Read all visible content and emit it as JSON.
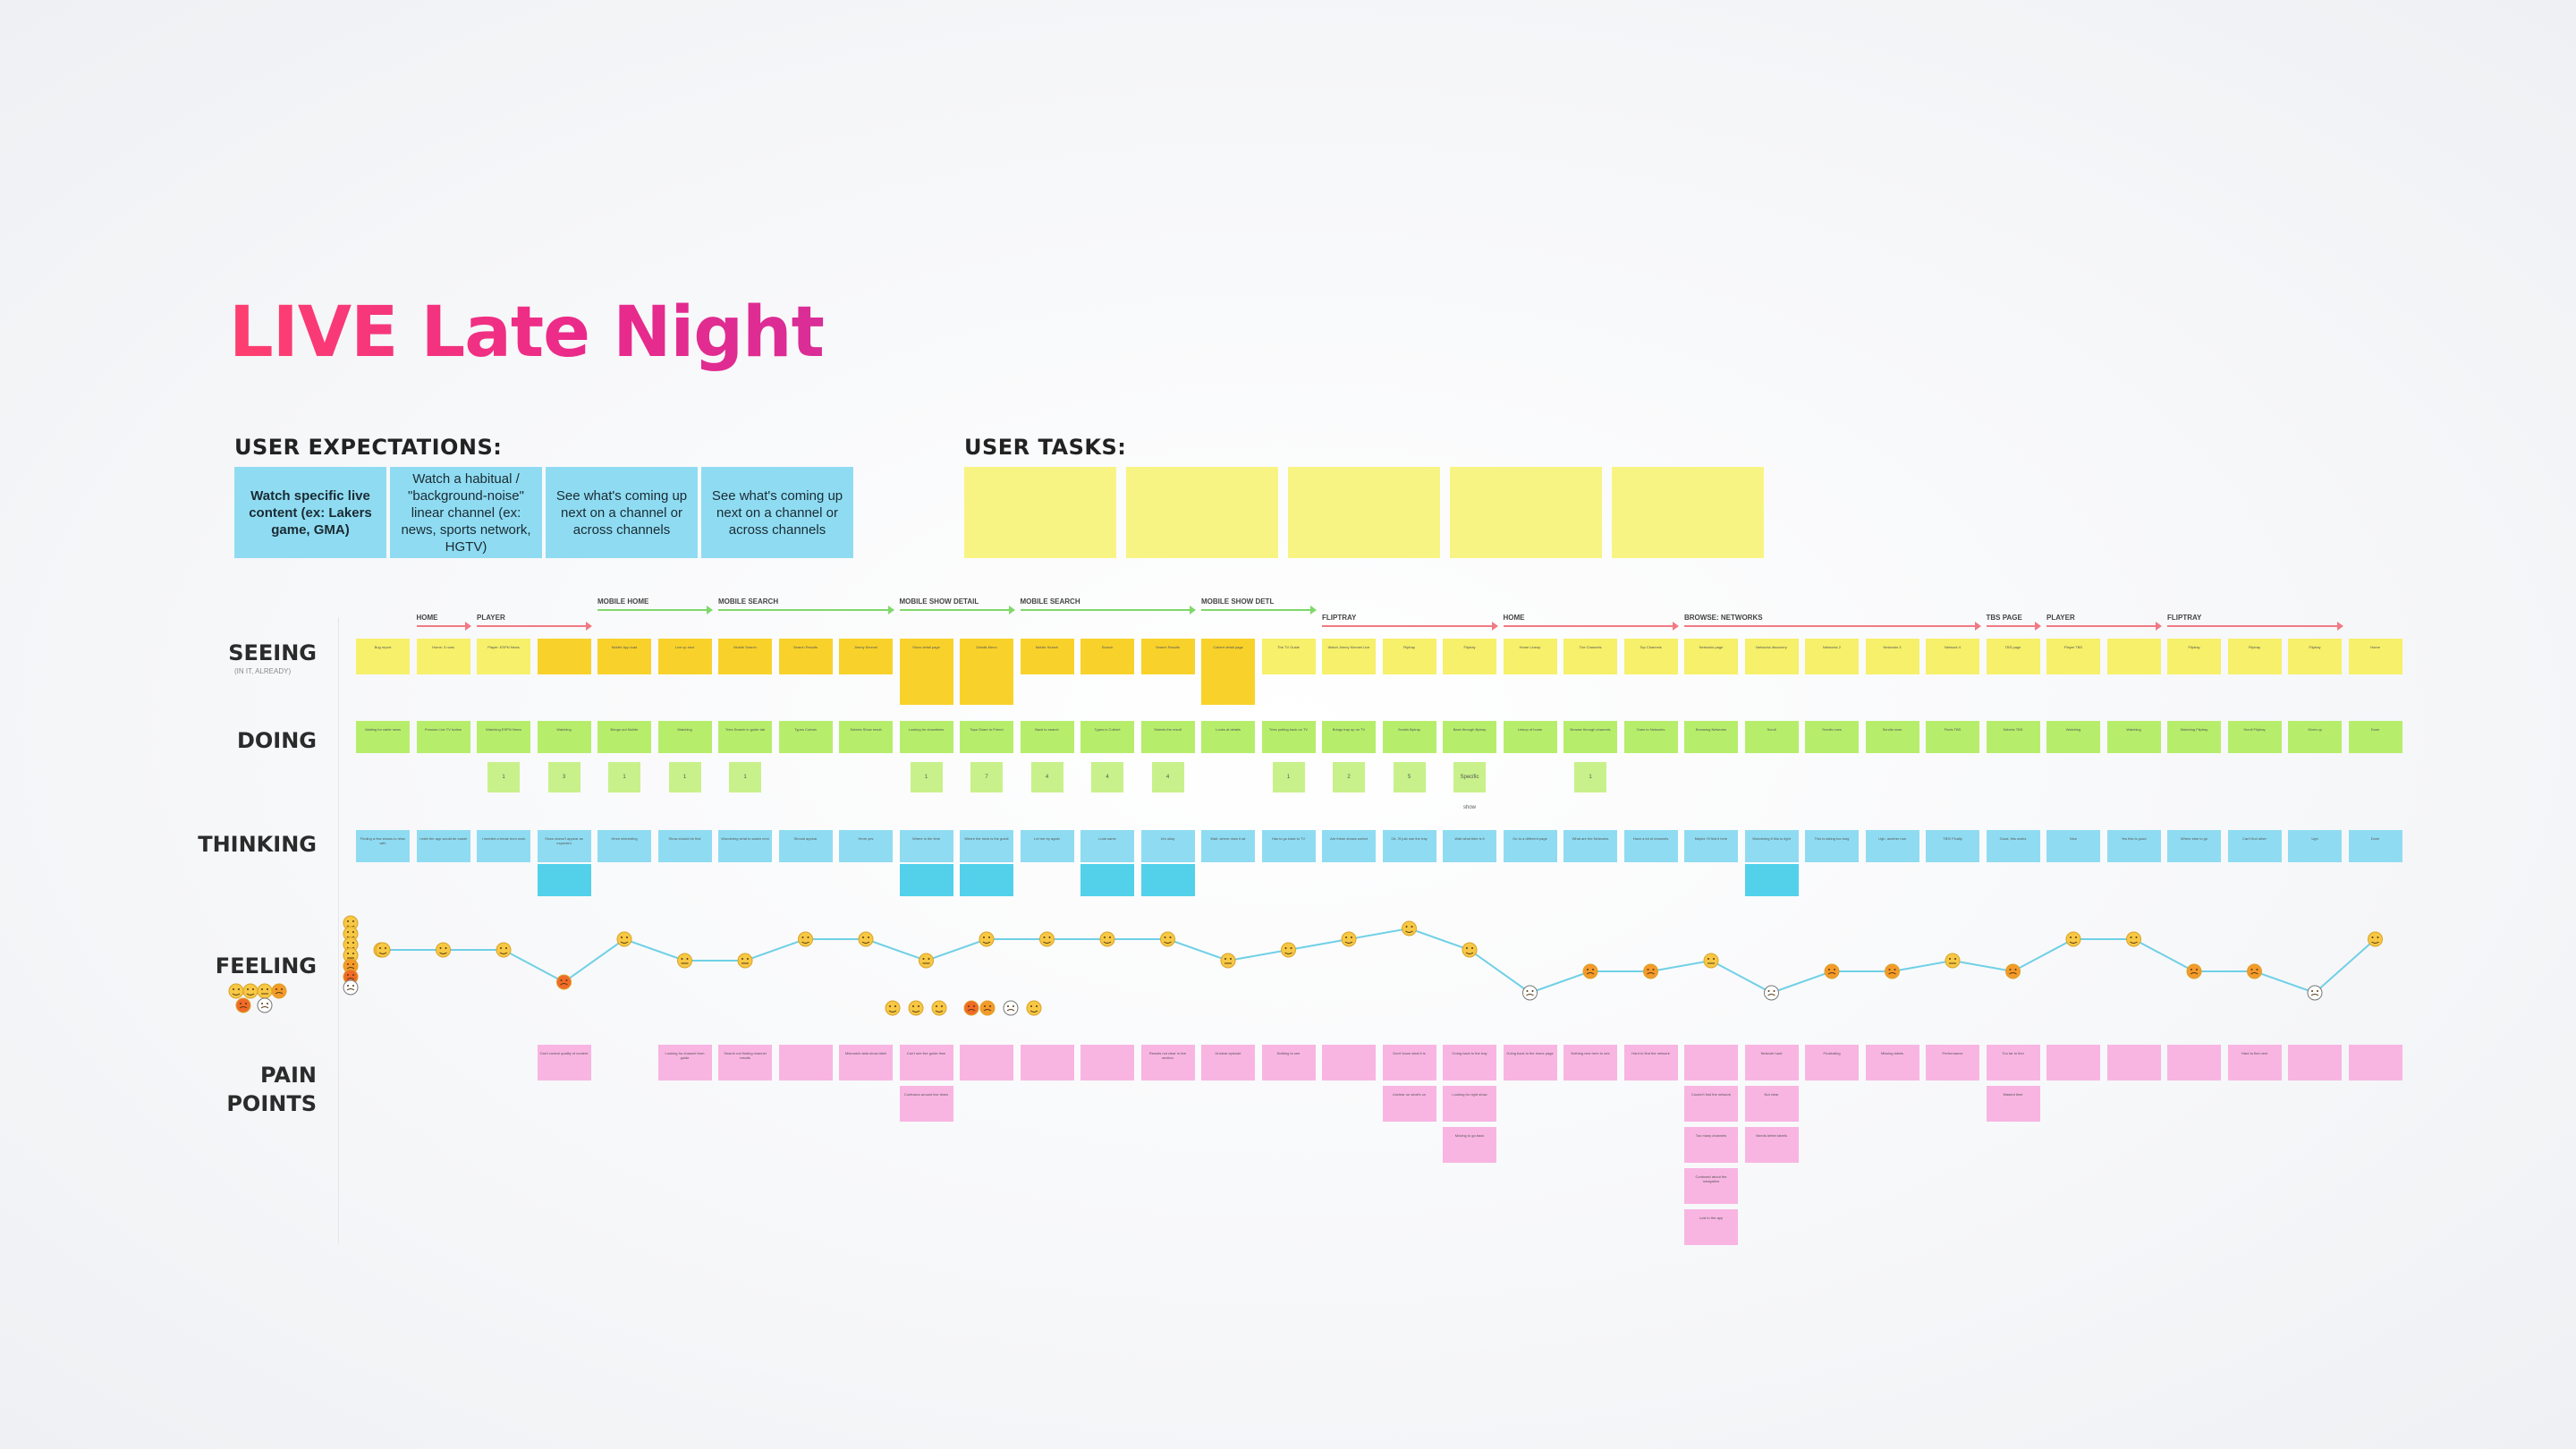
{
  "title": "LIVE Late Night",
  "colors": {
    "title_gradient": [
      "#ff3f6f",
      "#d92d97"
    ],
    "seeing": "#f6f06a",
    "seeing_highlight": "#f8d22b",
    "doing": "#b6ee6c",
    "thinking": "#8fdcf2",
    "thinking_highlight": "#53d1eb",
    "pain": "#f8b5e2",
    "emotion_line": "#6fd0e6",
    "arrow_red": "#f07a85",
    "arrow_green": "#7fd86a"
  },
  "user_expectations": {
    "label": "USER EXPECTATIONS:",
    "cards": [
      {
        "text": "Watch specific live content (ex: Lakers game, GMA)"
      },
      {
        "text": "Watch a habitual / \"background-noise\" linear channel (ex: news, sports network, HGTV)"
      },
      {
        "text": "See what's coming up next on a channel or across channels"
      },
      {
        "text": "See what's coming up next on a channel or across channels"
      }
    ]
  },
  "user_tasks": {
    "label": "USER TASKS:",
    "cards": [
      "",
      "",
      "",
      "",
      ""
    ]
  },
  "row_labels": {
    "seeing": "SEEING",
    "seeing_sub": "(IN IT, ALREADY)",
    "doing": "DOING",
    "thinking": "THINKING",
    "feeling": "FEELING",
    "pain1": "PAIN",
    "pain2": "POINTS"
  },
  "section_headers": [
    {
      "label": "HOME",
      "color": "red",
      "from": 1,
      "to": 1
    },
    {
      "label": "PLAYER",
      "color": "red",
      "from": 2,
      "to": 3
    },
    {
      "label": "MOBILE HOME",
      "color": "green",
      "from": 4,
      "to": 5
    },
    {
      "label": "MOBILE SEARCH",
      "color": "green",
      "from": 6,
      "to": 8
    },
    {
      "label": "MOBILE SHOW DETAIL",
      "color": "green",
      "from": 9,
      "to": 10
    },
    {
      "label": "MOBILE SEARCH",
      "color": "green",
      "from": 11,
      "to": 13
    },
    {
      "label": "MOBILE SHOW DETL",
      "color": "green",
      "from": 14,
      "to": 15
    },
    {
      "label": "FLIPTRAY",
      "color": "red",
      "from": 16,
      "to": 18
    },
    {
      "label": "HOME",
      "color": "red",
      "from": 19,
      "to": 21
    },
    {
      "label": "BROWSE: NETWORKS",
      "color": "red",
      "from": 22,
      "to": 26
    },
    {
      "label": "TBS PAGE",
      "color": "red",
      "from": 27,
      "to": 27
    },
    {
      "label": "PLAYER",
      "color": "red",
      "from": 28,
      "to": 29
    },
    {
      "label": "FLIPTRAY",
      "color": "red",
      "from": 30,
      "to": 32
    }
  ],
  "columns": [
    {
      "seeing": "yellow",
      "seeing_text": "Bug report",
      "doing_text": "Waiting for cable news",
      "chip": "",
      "thinking": [
        "blue"
      ],
      "thinking_text": "Finding a few shows to relax with",
      "emotion": 2,
      "pain": []
    },
    {
      "seeing": "yellow",
      "seeing_text": "Home: 3 rows",
      "doing_text": "Presses Live TV button",
      "chip": "",
      "thinking": [
        "blue"
      ],
      "thinking_text": "I wish the app would be easier",
      "emotion": 2,
      "pain": []
    },
    {
      "seeing": "yellow",
      "seeing_text": "Player: ESPN News",
      "doing_text": "Watching ESPN News",
      "chip": "1",
      "thinking": [
        "blue"
      ],
      "thinking_text": "I needed a break from work",
      "emotion": 2,
      "pain": []
    },
    {
      "seeing": "gold",
      "seeing_text": "",
      "doing_text": "Watching",
      "chip": "3",
      "thinking": [
        "blue",
        "cyan"
      ],
      "thinking_text": "Show doesn't appear as expected",
      "emotion": 5,
      "pain": [
        {
          "text": "Can't control quality of content"
        }
      ]
    },
    {
      "seeing": "gold",
      "seeing_text": "Mobile App load",
      "doing_text": "Brings out Mobile",
      "chip": "1",
      "thinking": [
        "blue"
      ],
      "thinking_text": "Hmm interesting",
      "emotion": 1,
      "pain": []
    },
    {
      "seeing": "gold",
      "seeing_text": "Live up next",
      "doing_text": "Watching",
      "chip": "1",
      "thinking": [
        "blue"
      ],
      "thinking_text": "Show should be first",
      "emotion": 3,
      "pain": [
        {
          "text": "Looking for channel from guide"
        }
      ]
    },
    {
      "seeing": "gold",
      "seeing_text": "Mobile Search",
      "doing_text": "Tries Search in guide tab",
      "chip": "1",
      "thinking": [
        "blue"
      ],
      "thinking_text": "Wondering what to watch next",
      "emotion": 3,
      "pain": [
        {
          "text": "Search not finding channel results"
        }
      ]
    },
    {
      "seeing": "gold",
      "seeing_text": "Search Results",
      "doing_text": "Types Curtain",
      "chip": "",
      "thinking": [
        "blue"
      ],
      "thinking_text": "Should appear",
      "emotion": 1,
      "pain": [
        {
          "text": ""
        }
      ]
    },
    {
      "seeing": "gold",
      "seeing_text": "Jimmy Kimmel",
      "doing_text": "Selects Show result",
      "chip": "",
      "thinking": [
        "blue"
      ],
      "thinking_text": "Hmm yes",
      "emotion": 1,
      "pain": [
        {
          "text": "Mismatch data show label"
        }
      ]
    },
    {
      "seeing": "gold",
      "seeing_text": "Show detail page",
      "doing_text": "Looking for showtimes",
      "chip": "1",
      "thinking": [
        "blue",
        "cyan"
      ],
      "thinking_text": "Where is the time",
      "emotion": 3,
      "pain": [
        {
          "text": "Can't see live guide time"
        },
        {
          "text": "Confusion around live times"
        }
      ]
    },
    {
      "seeing": "gold",
      "seeing_text": "Details Menu",
      "doing_text": "Taps Share to Friend",
      "chip": "7",
      "thinking": [
        "blue",
        "cyan"
      ],
      "thinking_text": "Where the heck is the guide",
      "emotion": 1,
      "pain": [
        {
          "text": ""
        }
      ]
    },
    {
      "seeing": "gold",
      "seeing_text": "Mobile Search",
      "doing_text": "Back to search",
      "chip": "4",
      "thinking": [
        "blue"
      ],
      "thinking_text": "Let me try again",
      "emotion": 1,
      "pain": [
        {
          "text": ""
        }
      ]
    },
    {
      "seeing": "gold",
      "seeing_text": "Search",
      "doing_text": "Types in Colbert",
      "chip": "4",
      "thinking": [
        "blue",
        "cyan"
      ],
      "thinking_text": "Look same",
      "emotion": 1,
      "pain": [
        {
          "text": ""
        }
      ]
    },
    {
      "seeing": "gold",
      "seeing_text": "Search Results",
      "doing_text": "Selects the result",
      "chip": "4",
      "thinking": [
        "blue",
        "cyan"
      ],
      "thinking_text": "Um okay",
      "emotion": 1,
      "pain": [
        {
          "text": "Results not clear in live section"
        }
      ]
    },
    {
      "seeing": "gold",
      "seeing_text": "Colbert detail page",
      "doing_text": "Looks at details",
      "chip": "",
      "thinking": [
        "blue"
      ],
      "thinking_text": "Wait, where does it air",
      "emotion": 3,
      "pain": [
        {
          "text": "Unclear episode"
        }
      ]
    },
    {
      "seeing": "yellow",
      "seeing_text": "The TV Guide",
      "doing_text": "Tries putting back on TV",
      "chip": "1",
      "thinking": [
        "blue"
      ],
      "thinking_text": "Has to go back to TV",
      "emotion": 2,
      "pain": [
        {
          "text": "Nothing to see"
        }
      ]
    },
    {
      "seeing": "yellow",
      "seeing_text": "Watch Jimmy Kimmel Live",
      "doing_text": "Brings tray up on TV",
      "chip": "2",
      "thinking": [
        "blue"
      ],
      "thinking_text": "Are these shows sorted",
      "emotion": 1,
      "pain": [
        {
          "text": ""
        }
      ]
    },
    {
      "seeing": "yellow",
      "seeing_text": "Fliptray",
      "doing_text": "Scrolls fliptray",
      "chip": "5",
      "thinking": [
        "blue"
      ],
      "thinking_text": "Ok, I'll just use the tray",
      "emotion": 0,
      "pain": [
        {
          "text": "Don't know what it is"
        },
        {
          "text": "Unclear on what's on"
        }
      ]
    },
    {
      "seeing": "yellow",
      "seeing_text": "Fliptray",
      "doing_text": "Back through fliptray",
      "chip": "Specific show",
      "thinking": [
        "blue"
      ],
      "thinking_text": "Wait what time is it",
      "emotion": 2,
      "pain": [
        {
          "text": "Going back to the tray"
        },
        {
          "text": "Looking for right show"
        },
        {
          "text": "Moving to go back"
        }
      ]
    },
    {
      "seeing": "yellow",
      "seeing_text": "Home Lineup",
      "doing_text": "Lineup of home",
      "chip": "",
      "thinking": [
        "blue"
      ],
      "thinking_text": "Go to a different page",
      "emotion": 6,
      "pain": [
        {
          "text": "Going back to the home page"
        }
      ]
    },
    {
      "seeing": "yellow",
      "seeing_text": "The Channels",
      "doing_text": "Browse through channels",
      "chip": "1",
      "thinking": [
        "blue"
      ],
      "thinking_text": "What are the Networks",
      "emotion": 4,
      "pain": [
        {
          "text": "Nothing new here to see"
        }
      ]
    },
    {
      "seeing": "yellow",
      "seeing_text": "Top Channels",
      "doing_text": "Goes to Networks",
      "chip": "",
      "thinking": [
        "blue"
      ],
      "thinking_text": "Have a lot of channels",
      "emotion": 4,
      "pain": [
        {
          "text": "Hard to find the network"
        }
      ]
    },
    {
      "seeing": "yellow",
      "seeing_text": "Networks page",
      "doing_text": "Browsing Networks",
      "chip": "",
      "thinking": [
        "blue"
      ],
      "thinking_text": "Maybe I'll find it here",
      "emotion": 3,
      "pain": [
        {
          "text": ""
        },
        {
          "text": "Couldn't find the network"
        },
        {
          "text": "Too many channels"
        },
        {
          "text": "Confused about the navigation"
        },
        {
          "text": "Lost in the app"
        }
      ]
    },
    {
      "seeing": "yellow",
      "seeing_text": "Networks discovery",
      "doing_text": "Scroll",
      "chip": "",
      "thinking": [
        "blue",
        "cyan"
      ],
      "thinking_text": "Wondering if this is right",
      "emotion": 6,
      "pain": [
        {
          "text": "Network hard"
        },
        {
          "text": "Not clear"
        },
        {
          "text": "Needs better labels"
        }
      ]
    },
    {
      "seeing": "yellow",
      "seeing_text": "Networks 2",
      "doing_text": "Scrolls rows",
      "chip": "",
      "thinking": [
        "blue"
      ],
      "thinking_text": "This is taking too long",
      "emotion": 4,
      "pain": [
        {
          "text": "Frustrating"
        }
      ]
    },
    {
      "seeing": "yellow",
      "seeing_text": "Networks 3",
      "doing_text": "Scrolls rows",
      "chip": "",
      "thinking": [
        "blue"
      ],
      "thinking_text": "Ugh, another row",
      "emotion": 4,
      "pain": [
        {
          "text": "Missing labels"
        }
      ]
    },
    {
      "seeing": "yellow",
      "seeing_text": "Network 4",
      "doing_text": "Finds TBS",
      "chip": "",
      "thinking": [
        "blue"
      ],
      "thinking_text": "TBS! Finally",
      "emotion": 3,
      "pain": [
        {
          "text": "Performance"
        }
      ]
    },
    {
      "seeing": "yellow",
      "seeing_text": "TBS page",
      "doing_text": "Selects TBS",
      "chip": "",
      "thinking": [
        "blue"
      ],
      "thinking_text": "Good, this works",
      "emotion": 4,
      "pain": [
        {
          "text": "Too far to find"
        },
        {
          "text": "Wasted time"
        }
      ]
    },
    {
      "seeing": "yellow",
      "seeing_text": "Player TBS",
      "doing_text": "Watching",
      "chip": "",
      "thinking": [
        "blue"
      ],
      "thinking_text": "Nice",
      "emotion": 1,
      "pain": [
        {
          "text": ""
        }
      ]
    },
    {
      "seeing": "yellow",
      "seeing_text": "",
      "doing_text": "Watching",
      "chip": "",
      "thinking": [
        "blue"
      ],
      "thinking_text": "Yes this is good",
      "emotion": 1,
      "pain": [
        {
          "text": ""
        }
      ]
    },
    {
      "seeing": "yellow",
      "seeing_text": "Fliptray",
      "doing_text": "Watching Fliptray",
      "chip": "",
      "thinking": [
        "blue"
      ],
      "thinking_text": "Where else to go",
      "emotion": 4,
      "pain": [
        {
          "text": ""
        }
      ]
    },
    {
      "seeing": "yellow",
      "seeing_text": "Fliptray",
      "doing_text": "Scroll Fliptray",
      "chip": "",
      "thinking": [
        "blue"
      ],
      "thinking_text": "Can't find other",
      "emotion": 4,
      "pain": [
        {
          "text": "Hard to find next"
        }
      ]
    },
    {
      "seeing": "yellow",
      "seeing_text": "Fliptray",
      "doing_text": "Gives up",
      "chip": "",
      "thinking": [
        "blue"
      ],
      "thinking_text": "Ugh",
      "emotion": 6,
      "pain": [
        {
          "text": ""
        }
      ]
    },
    {
      "seeing": "yellow",
      "seeing_text": "Home",
      "doing_text": "Done",
      "chip": "",
      "thinking": [
        "blue"
      ],
      "thinking_text": "Done",
      "emotion": 1,
      "pain": [
        {
          "text": ""
        }
      ]
    }
  ],
  "emotion_scale": {
    "top": "happy",
    "bottom": "angry",
    "levels": 7
  },
  "emotion_legend_faces": [
    "happy-face-icon",
    "content-face-icon",
    "neutral-face-icon",
    "sad-face-icon",
    "angry-face-icon",
    "dead-face-icon"
  ]
}
